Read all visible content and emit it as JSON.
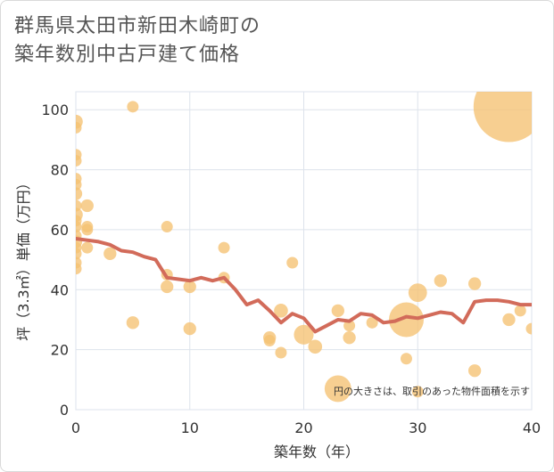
{
  "title_lines": [
    "群馬県太田市新田木崎町の",
    "築年数別中古戸建て価格"
  ],
  "chart_data": {
    "type": "scatter",
    "title": "群馬県太田市新田木崎町の築年数別中古戸建て価格",
    "xlabel": "築年数（年）",
    "ylabel": "坪（3.3㎡）単価（万円）",
    "xlim": [
      0,
      40
    ],
    "ylim": [
      0,
      106
    ],
    "xticks": [
      0,
      10,
      20,
      30,
      40
    ],
    "yticks": [
      0,
      20,
      40,
      60,
      80,
      100
    ],
    "grid": true,
    "annotation": "円の大きさは、取引のあった物件面積を示す",
    "colors": {
      "bubble": "#f5c272",
      "trend": "#d26b5a",
      "grid": "#dde3ec",
      "plot_bg": "#ffffff"
    },
    "points": [
      {
        "x": 0,
        "y": 96,
        "s": 1.2
      },
      {
        "x": 0,
        "y": 94,
        "s": 1
      },
      {
        "x": 0,
        "y": 85,
        "s": 1
      },
      {
        "x": 0,
        "y": 83,
        "s": 1
      },
      {
        "x": 0,
        "y": 77,
        "s": 1
      },
      {
        "x": 0,
        "y": 75,
        "s": 1
      },
      {
        "x": 0,
        "y": 72,
        "s": 1.1
      },
      {
        "x": 0,
        "y": 68,
        "s": 1
      },
      {
        "x": 0,
        "y": 65,
        "s": 1.2
      },
      {
        "x": 0,
        "y": 63,
        "s": 1
      },
      {
        "x": 0,
        "y": 61,
        "s": 1
      },
      {
        "x": 0,
        "y": 58,
        "s": 1
      },
      {
        "x": 0,
        "y": 56,
        "s": 1.1
      },
      {
        "x": 0,
        "y": 54,
        "s": 1
      },
      {
        "x": 0,
        "y": 52,
        "s": 1
      },
      {
        "x": 0,
        "y": 49,
        "s": 1
      },
      {
        "x": 0,
        "y": 47,
        "s": 1
      },
      {
        "x": 1,
        "y": 68,
        "s": 1.1
      },
      {
        "x": 1,
        "y": 61,
        "s": 1
      },
      {
        "x": 1,
        "y": 60,
        "s": 1
      },
      {
        "x": 1,
        "y": 54,
        "s": 1
      },
      {
        "x": 3,
        "y": 52,
        "s": 1.1
      },
      {
        "x": 5,
        "y": 101,
        "s": 1
      },
      {
        "x": 5,
        "y": 29,
        "s": 1.1
      },
      {
        "x": 8,
        "y": 61,
        "s": 1
      },
      {
        "x": 8,
        "y": 45,
        "s": 1
      },
      {
        "x": 8,
        "y": 41,
        "s": 1.1
      },
      {
        "x": 10,
        "y": 41,
        "s": 1.1
      },
      {
        "x": 10,
        "y": 27,
        "s": 1.1
      },
      {
        "x": 13,
        "y": 54,
        "s": 1
      },
      {
        "x": 13,
        "y": 44,
        "s": 1
      },
      {
        "x": 17,
        "y": 24,
        "s": 1.1
      },
      {
        "x": 17,
        "y": 23,
        "s": 1
      },
      {
        "x": 18,
        "y": 33,
        "s": 1.2
      },
      {
        "x": 18,
        "y": 19,
        "s": 1
      },
      {
        "x": 19,
        "y": 49,
        "s": 1
      },
      {
        "x": 20,
        "y": 25,
        "s": 1.7
      },
      {
        "x": 21,
        "y": 21,
        "s": 1.2
      },
      {
        "x": 23,
        "y": 33,
        "s": 1.1
      },
      {
        "x": 23,
        "y": 7,
        "s": 2.3
      },
      {
        "x": 24,
        "y": 28,
        "s": 1
      },
      {
        "x": 24,
        "y": 24,
        "s": 1.1
      },
      {
        "x": 26,
        "y": 29,
        "s": 1
      },
      {
        "x": 29,
        "y": 30,
        "s": 3.0
      },
      {
        "x": 29,
        "y": 17,
        "s": 1
      },
      {
        "x": 30,
        "y": 39,
        "s": 1.6
      },
      {
        "x": 30,
        "y": 6,
        "s": 1
      },
      {
        "x": 32,
        "y": 43,
        "s": 1.1
      },
      {
        "x": 35,
        "y": 42,
        "s": 1.1
      },
      {
        "x": 35,
        "y": 13,
        "s": 1.1
      },
      {
        "x": 38,
        "y": 101,
        "s": 6.1
      },
      {
        "x": 38,
        "y": 30,
        "s": 1.1
      },
      {
        "x": 39,
        "y": 33,
        "s": 1
      },
      {
        "x": 40,
        "y": 27,
        "s": 1
      }
    ],
    "trend": {
      "x": [
        0,
        1,
        2,
        3,
        4,
        5,
        6,
        7,
        8,
        9,
        10,
        11,
        12,
        13,
        14,
        15,
        16,
        17,
        18,
        19,
        20,
        21,
        22,
        23,
        24,
        25,
        26,
        27,
        28,
        29,
        30,
        31,
        32,
        33,
        34,
        35,
        36,
        37,
        38,
        39,
        40
      ],
      "y": [
        57,
        56.5,
        56,
        55,
        53,
        52.5,
        51,
        50,
        44,
        43.5,
        43,
        44,
        43,
        44,
        40,
        35,
        36.5,
        33,
        29,
        32,
        30.5,
        26,
        28,
        30,
        29.5,
        32,
        31.5,
        29,
        29.5,
        31,
        30.5,
        31.5,
        32.5,
        32,
        29,
        36,
        36.5,
        36.5,
        36,
        35,
        35
      ]
    }
  }
}
